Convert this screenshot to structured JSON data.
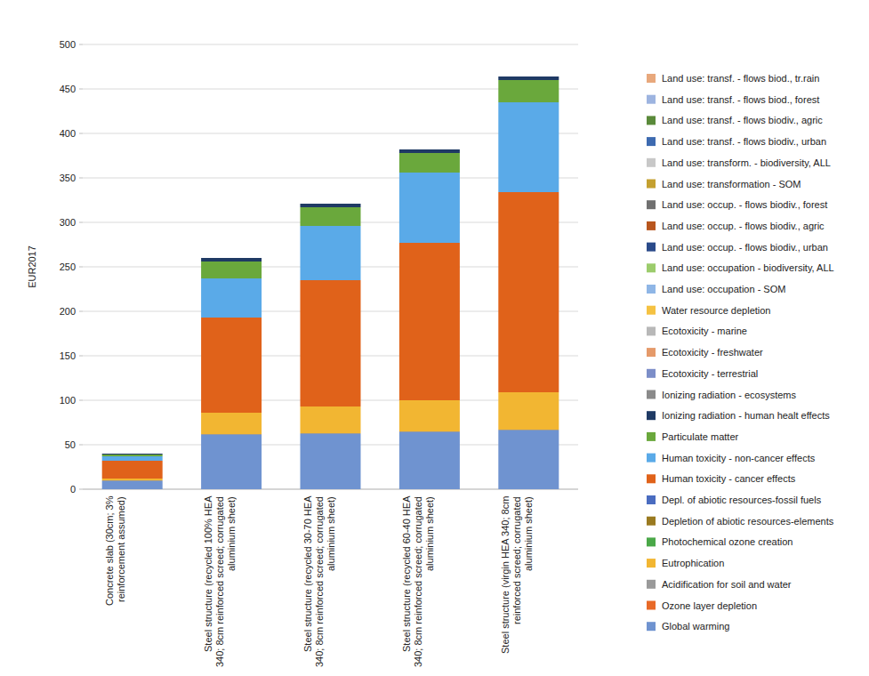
{
  "chart_data": {
    "type": "bar",
    "stacked": true,
    "grid": true,
    "legend": "right",
    "y_label": "EUR2017",
    "categories": [
      "Concrete slab (30cm; 3% reinforcement assumed)",
      "Steel structure (recycled 100% HEA 340; 8cm reinforced screed; corrugated aluminium sheet)",
      "Steel structure (recycled 30-70 HEA 340; 8cm reinforced screed; corrugated aluminium sheet)",
      "Steel structure (recycled 60-40 HEA 340; 8cm reinforced screed; corrugated aluminium sheet)",
      "Steel structure (virgin HEA 340; 8cm reinforced screed; corrugated aluminium sheet)"
    ],
    "ylim": [
      0,
      500
    ],
    "yticks": [
      0,
      50,
      100,
      150,
      200,
      250,
      300,
      350,
      400,
      450,
      500
    ],
    "series": [
      {
        "name": "Global warming",
        "color": "#6f93d0",
        "values": [
          9,
          61,
          62,
          64,
          66
        ]
      },
      {
        "name": "Ozone layer depletion",
        "color": "#e86a28",
        "values": [
          0,
          0,
          0,
          0,
          0
        ]
      },
      {
        "name": "Acidification for soil and water",
        "color": "#9a9a9a",
        "values": [
          1,
          1,
          1,
          1,
          1
        ]
      },
      {
        "name": "Eutrophication",
        "color": "#f2b632",
        "values": [
          2,
          24,
          30,
          35,
          42
        ]
      },
      {
        "name": "Photochemical ozone creation",
        "color": "#4aa848",
        "values": [
          0,
          0,
          0,
          0,
          0
        ]
      },
      {
        "name": "Depletion of abiotic resources-elements",
        "color": "#9a7a20",
        "values": [
          0,
          0,
          0,
          0,
          0
        ]
      },
      {
        "name": "Depl. of abiotic resources-fossil fuels",
        "color": "#4a6cc0",
        "values": [
          0,
          0,
          0,
          0,
          0
        ]
      },
      {
        "name": "Human toxicity - cancer effects",
        "color": "#e0621a",
        "values": [
          20,
          107,
          142,
          177,
          225
        ]
      },
      {
        "name": "Human toxicity - non-cancer effects",
        "color": "#5aaae8",
        "values": [
          5,
          44,
          61,
          79,
          101
        ]
      },
      {
        "name": "Particulate matter",
        "color": "#6aa83c",
        "values": [
          2,
          19,
          21,
          22,
          25
        ]
      },
      {
        "name": "Ionizing radiation - human healt effects",
        "color": "#1f3a64",
        "values": [
          1,
          4,
          4,
          4,
          4
        ]
      },
      {
        "name": "Ionizing radiation - ecosystems",
        "color": "#8a8a8a",
        "values": [
          0,
          0,
          0,
          0,
          0
        ]
      },
      {
        "name": "Ecotoxicity - terrestrial",
        "color": "#7c8ec8",
        "values": [
          0,
          0,
          0,
          0,
          0
        ]
      },
      {
        "name": "Ecotoxicity - freshwater",
        "color": "#e59a6a",
        "values": [
          0,
          0,
          0,
          0,
          0
        ]
      },
      {
        "name": "Ecotoxicity - marine",
        "color": "#b8b8b8",
        "values": [
          0,
          0,
          0,
          0,
          0
        ]
      },
      {
        "name": "Water resource depletion",
        "color": "#f5c242",
        "values": [
          0,
          0,
          0,
          0,
          0
        ]
      },
      {
        "name": "Land use: occupation - SOM",
        "color": "#8fb6e6",
        "values": [
          0,
          0,
          0,
          0,
          0
        ]
      },
      {
        "name": "Land use: occupation - biodiversity, ALL",
        "color": "#9ccc6c",
        "values": [
          0,
          0,
          0,
          0,
          0
        ]
      },
      {
        "name": "Land use: occup. - flows biodiv., urban",
        "color": "#2a4a8a",
        "values": [
          0,
          0,
          0,
          0,
          0
        ]
      },
      {
        "name": "Land use: occup. - flows biodiv., agric",
        "color": "#b8561e",
        "values": [
          0,
          0,
          0,
          0,
          0
        ]
      },
      {
        "name": "Land use: occup. - flows biodiv., forest",
        "color": "#707070",
        "values": [
          0,
          0,
          0,
          0,
          0
        ]
      },
      {
        "name": "Land use: transformation - SOM",
        "color": "#c4a030",
        "values": [
          0,
          0,
          0,
          0,
          0
        ]
      },
      {
        "name": "Land use: transform. - biodiversity, ALL",
        "color": "#c8c8c8",
        "values": [
          0,
          0,
          0,
          0,
          0
        ]
      },
      {
        "name": "Land use: transf. - flows biodiv., urban",
        "color": "#3d6ab0",
        "values": [
          0,
          0,
          0,
          0,
          0
        ]
      },
      {
        "name": "Land use: transf. - flows biodiv., agric",
        "color": "#5a8a3a",
        "values": [
          0,
          0,
          0,
          0,
          0
        ]
      },
      {
        "name": "Land use: transf. - flows biod., forest",
        "color": "#9db4e0",
        "values": [
          0,
          0,
          0,
          0,
          0
        ]
      },
      {
        "name": "Land use: transf. - flows biod., tr.rain",
        "color": "#e8a87c",
        "values": [
          0,
          0,
          0,
          0,
          0
        ]
      }
    ]
  }
}
